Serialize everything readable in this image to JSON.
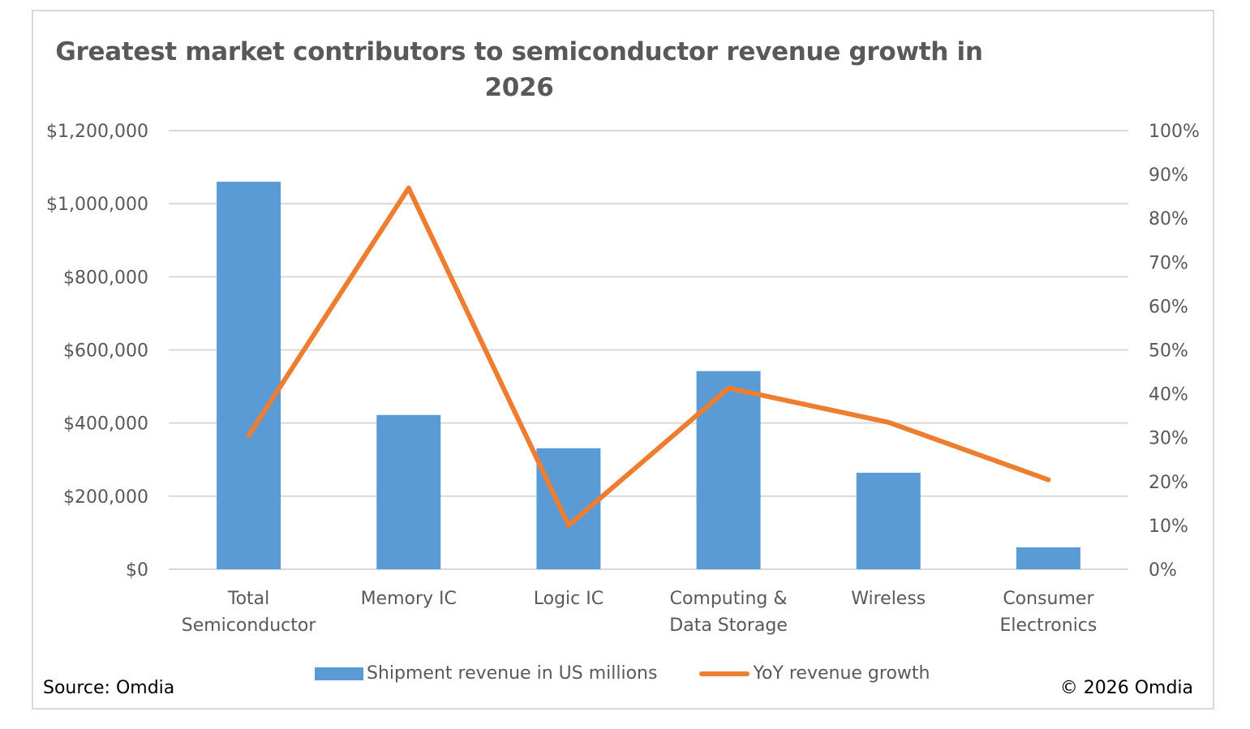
{
  "chart_data": {
    "type": "bar",
    "title": "Greatest market contributors to semiconductor revenue growth in 2026",
    "title_lines": [
      "Greatest market contributors to semiconductor revenue growth in",
      "2026"
    ],
    "categories": [
      [
        "Total",
        "Semiconductor"
      ],
      [
        "Memory IC"
      ],
      [
        "Logic IC"
      ],
      [
        "Computing &",
        "Data Storage"
      ],
      [
        "Wireless"
      ],
      [
        "Consumer",
        "Electronics"
      ]
    ],
    "series": [
      {
        "name": "Shipment revenue in US millions",
        "type": "bar",
        "axis": "left",
        "color": "#5b9bd5",
        "values": [
          1060000,
          422000,
          331000,
          542000,
          264000,
          60000
        ]
      },
      {
        "name": "YoY revenue growth",
        "type": "line",
        "axis": "right",
        "color": "#ed7d31",
        "values": [
          0.305,
          0.869,
          0.1,
          0.413,
          0.335,
          0.204
        ]
      }
    ],
    "y_left": {
      "range": [
        0,
        1200000
      ],
      "ticks": [
        0,
        200000,
        400000,
        600000,
        800000,
        1000000,
        1200000
      ],
      "tick_labels": [
        "$0",
        "$200,000",
        "$400,000",
        "$600,000",
        "$800,000",
        "$1,000,000",
        "$1,200,000"
      ]
    },
    "y_right": {
      "range": [
        0,
        1.0
      ],
      "ticks": [
        0,
        0.1,
        0.2,
        0.3,
        0.4,
        0.5,
        0.6,
        0.7,
        0.8,
        0.9,
        1.0
      ],
      "tick_labels": [
        "0%",
        "10%",
        "20%",
        "30%",
        "40%",
        "50%",
        "60%",
        "70%",
        "80%",
        "90%",
        "100%"
      ]
    },
    "grid": true,
    "legend_position": "bottom",
    "xlabel": "",
    "ylabel": ""
  },
  "legend": {
    "bar_label": "Shipment revenue in US millions",
    "line_label": "YoY revenue growth"
  },
  "footer": {
    "source": "Source: Omdia",
    "copyright": "© 2026 Omdia"
  }
}
